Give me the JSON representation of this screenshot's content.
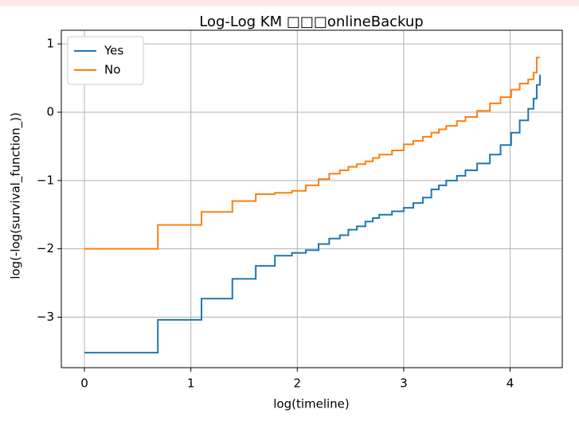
{
  "chart_data": {
    "type": "step",
    "title": "Log-Log KM □□□onlineBackup",
    "x_label": "log(timeline)",
    "y_label": "log(-log(survival_function_))",
    "x": [
      0,
      0.69,
      1.1,
      1.39,
      1.61,
      1.79,
      1.95,
      2.08,
      2.2,
      2.3,
      2.4,
      2.48,
      2.56,
      2.64,
      2.71,
      2.77,
      2.89,
      3.0,
      3.09,
      3.18,
      3.26,
      3.33,
      3.4,
      3.5,
      3.58,
      3.69,
      3.81,
      3.91,
      4.01,
      4.09,
      4.17,
      4.22,
      4.25,
      4.28
    ],
    "series": [
      {
        "name": "Yes",
        "color": "#1f77b4",
        "values": [
          -3.52,
          -3.04,
          -2.73,
          -2.44,
          -2.25,
          -2.1,
          -2.06,
          -2.02,
          -1.93,
          -1.85,
          -1.8,
          -1.72,
          -1.67,
          -1.6,
          -1.55,
          -1.5,
          -1.45,
          -1.4,
          -1.33,
          -1.25,
          -1.13,
          -1.07,
          -1.0,
          -0.93,
          -0.85,
          -0.75,
          -0.62,
          -0.48,
          -0.3,
          -0.12,
          0.05,
          0.2,
          0.4,
          0.55
        ]
      },
      {
        "name": "No",
        "color": "#ff7f0e",
        "values": [
          -2.0,
          -1.65,
          -1.46,
          -1.3,
          -1.2,
          -1.18,
          -1.15,
          -1.07,
          -0.98,
          -0.9,
          -0.85,
          -0.8,
          -0.76,
          -0.72,
          -0.67,
          -0.62,
          -0.56,
          -0.47,
          -0.42,
          -0.36,
          -0.3,
          -0.25,
          -0.2,
          -0.13,
          -0.07,
          0.02,
          0.13,
          0.22,
          0.33,
          0.42,
          0.48,
          0.58,
          0.8,
          0.8
        ]
      }
    ],
    "xlim": [
      -0.217,
      4.49
    ],
    "ylim": [
      -3.74,
      1.2
    ],
    "xticks": [
      0,
      1,
      2,
      3,
      4
    ],
    "yticks": [
      {
        "value": -3,
        "label": "−3"
      },
      {
        "value": -2,
        "label": "−2"
      },
      {
        "value": -1,
        "label": "−1"
      },
      0,
      1
    ],
    "grid": true,
    "legend": "upper-left"
  }
}
